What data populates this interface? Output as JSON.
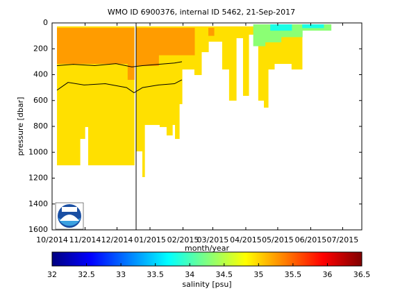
{
  "chart_data": {
    "type": "contourf",
    "title": "WMO ID 6900376, internal ID 5462, 21-Sep-2017",
    "x_label": "month/year",
    "y_label": "pressure [dbar]",
    "xlim": [
      0,
      291
    ],
    "ylim": [
      0,
      1600
    ],
    "y_reversed": true,
    "xticks": [
      {
        "value": 0,
        "label": "10/2014"
      },
      {
        "value": 31,
        "label": "11/2014"
      },
      {
        "value": 61,
        "label": "12/2014"
      },
      {
        "value": 92,
        "label": "01/2015"
      },
      {
        "value": 123,
        "label": "02/2015"
      },
      {
        "value": 151,
        "label": "03/2015"
      },
      {
        "value": 182,
        "label": "04/2015"
      },
      {
        "value": 212,
        "label": "05/2015"
      },
      {
        "value": 243,
        "label": "06/2015"
      },
      {
        "value": 273,
        "label": "07/2015"
      }
    ],
    "yticks": [
      0,
      200,
      400,
      600,
      800,
      1000,
      1200,
      1400,
      1600
    ],
    "colorbar_label": "salinity [psu]",
    "clim": [
      32,
      36.5
    ],
    "cticks": [
      32,
      32.5,
      33,
      33.5,
      34,
      34.5,
      35,
      35.5,
      36,
      36.5
    ],
    "regions": [
      {
        "level": 34.95,
        "top": 27,
        "segments": [
          [
            4.6,
            26.1,
            1101
          ],
          [
            26.1,
            30.7,
            897
          ],
          [
            30.7,
            33.9,
            805
          ],
          [
            33.9,
            77.0,
            1101
          ],
          [
            78.9,
            84.8,
            993
          ],
          [
            84.8,
            86.8,
            1192
          ],
          [
            86.8,
            101.1,
            789
          ],
          [
            101.1,
            107.6,
            805
          ],
          [
            107.6,
            112.9,
            870
          ],
          [
            112.9,
            115.5,
            789
          ],
          [
            115.5,
            119.4,
            897
          ],
          [
            119.4,
            122.0,
            628
          ],
          [
            122.0,
            133.7,
            360
          ],
          [
            133.7,
            140.2,
            403
          ],
          [
            140.2,
            146.8,
            226
          ],
          [
            146.8,
            159.8,
            145
          ],
          [
            159.8,
            166.3,
            360
          ],
          [
            166.3,
            172.9,
            601
          ],
          [
            172.9,
            179.4,
            118
          ],
          [
            179.4,
            184.6,
            564
          ],
          [
            184.6,
            193.7,
            91
          ],
          [
            193.7,
            199.0,
            601
          ],
          [
            199.0,
            202.9,
            655
          ],
          [
            202.9,
            208.7,
            360
          ],
          [
            208.7,
            225.0,
            317
          ],
          [
            225.0,
            234.8,
            360
          ],
          [
            234.8,
            257.7,
            38
          ]
        ]
      },
      {
        "level": 35.25,
        "top": 38,
        "segments": [
          [
            4.6,
            71,
            317
          ],
          [
            71,
            77,
            440
          ],
          [
            78.9,
            100,
            333
          ],
          [
            100,
            133.7,
            250
          ],
          [
            146.8,
            152,
            100
          ]
        ]
      },
      {
        "level": 34.3,
        "top": 11,
        "segments": [
          [
            189,
            200,
            180
          ],
          [
            200,
            215,
            150
          ],
          [
            215,
            235,
            110
          ],
          [
            235,
            262,
            60
          ]
        ]
      },
      {
        "level": 33.8,
        "top": 11,
        "segments": [
          [
            205,
            225,
            60
          ],
          [
            235,
            255,
            40
          ]
        ]
      }
    ],
    "contours": [
      {
        "level": 35.0,
        "points": [
          [
            4.6,
            520
          ],
          [
            15,
            460
          ],
          [
            30,
            480
          ],
          [
            50,
            470
          ],
          [
            70,
            500
          ],
          [
            77,
            540
          ],
          [
            85,
            500
          ],
          [
            100,
            480
          ],
          [
            115,
            470
          ],
          [
            122,
            440
          ]
        ]
      },
      {
        "level": 35.4,
        "points": [
          [
            4.6,
            330
          ],
          [
            20,
            320
          ],
          [
            40,
            330
          ],
          [
            60,
            315
          ],
          [
            75,
            340
          ],
          [
            85,
            330
          ],
          [
            100,
            320
          ],
          [
            115,
            310
          ],
          [
            122,
            300
          ]
        ]
      }
    ]
  }
}
